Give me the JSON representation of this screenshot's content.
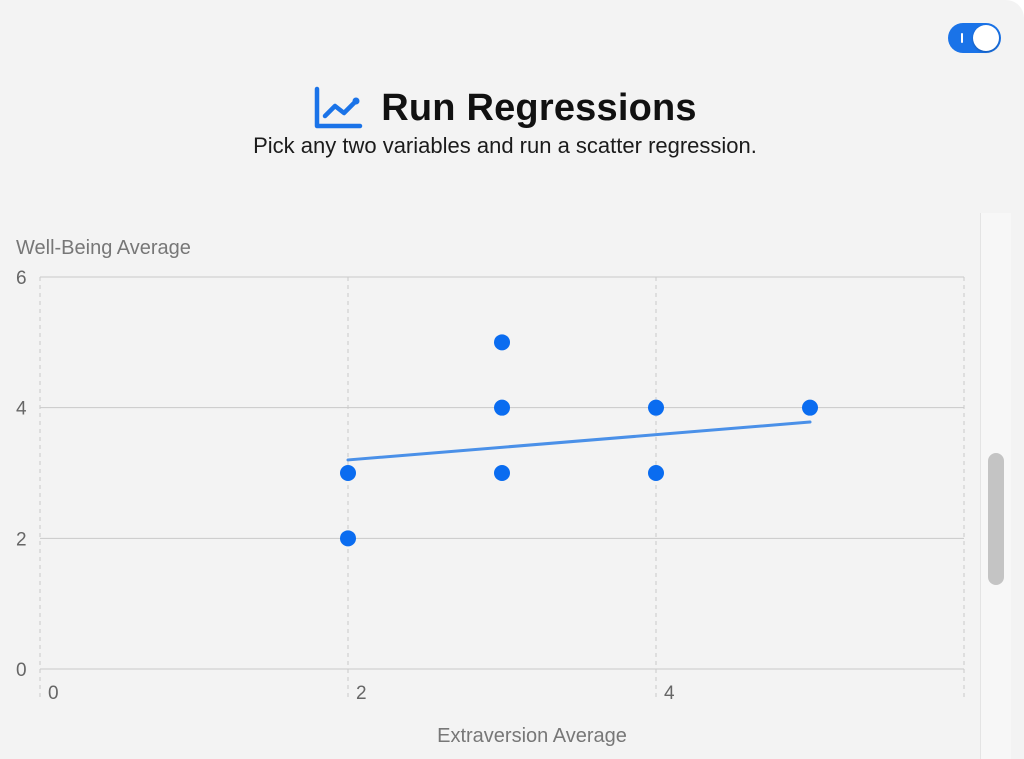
{
  "toggle": {
    "state": "on"
  },
  "header": {
    "icon": "line-chart-icon",
    "title": "Run Regressions",
    "subtitle": "Pick any two variables and run a scatter regression."
  },
  "partial_text": "-",
  "colors": {
    "accent": "#1a73e8",
    "point": "#0a6cf0",
    "regression_line": "#4a90e8",
    "grid": "#c9c9c9",
    "panel_background": "#f3f3f3"
  },
  "chart_data": {
    "type": "scatter",
    "xlabel": "Extraversion Average",
    "ylabel": "Well-Being Average",
    "xlim": [
      0,
      6
    ],
    "ylim": [
      0,
      6
    ],
    "x_ticks": [
      0,
      2,
      4
    ],
    "y_ticks": [
      0,
      2,
      4,
      6
    ],
    "x_tick_labels": [
      "0",
      "2",
      "4"
    ],
    "y_tick_labels": [
      "0",
      "2",
      "4",
      "6"
    ],
    "grid": true,
    "points": [
      {
        "x": 2,
        "y": 2
      },
      {
        "x": 2,
        "y": 3
      },
      {
        "x": 3,
        "y": 3
      },
      {
        "x": 3,
        "y": 4
      },
      {
        "x": 3,
        "y": 5
      },
      {
        "x": 4,
        "y": 3
      },
      {
        "x": 4,
        "y": 4
      },
      {
        "x": 5,
        "y": 4
      }
    ],
    "regression_line": {
      "x1": 2,
      "y1": 3.2,
      "x2": 5,
      "y2": 3.78
    }
  }
}
